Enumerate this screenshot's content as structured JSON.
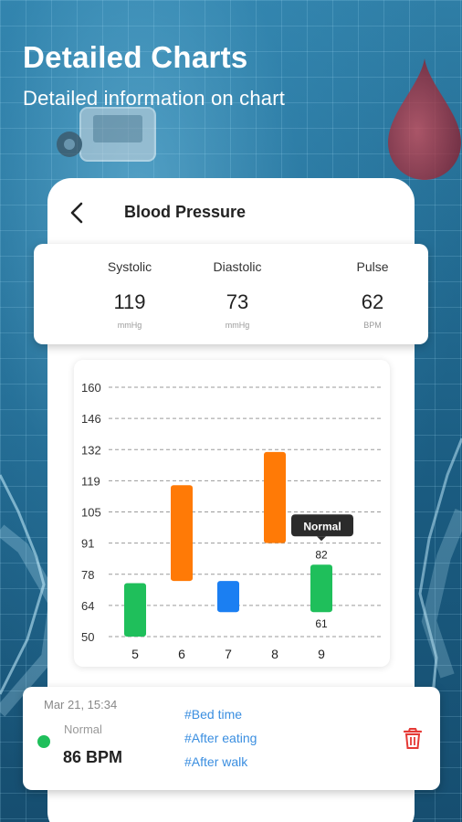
{
  "hero": {
    "title": "Detailed Charts",
    "subtitle": "Detailed information on chart"
  },
  "screen": {
    "title": "Blood Pressure"
  },
  "stats": [
    {
      "label": "Systolic",
      "value": "119",
      "unit": "mmHg"
    },
    {
      "label": "Diastolic",
      "value": "73",
      "unit": "mmHg"
    },
    {
      "label": "Pulse",
      "value": "62",
      "unit": "BPM"
    }
  ],
  "chart_data": {
    "type": "bar",
    "subtype": "floating-range",
    "y_ticks": [
      "160",
      "146",
      "132",
      "119",
      "105",
      "91",
      "78",
      "64",
      "50"
    ],
    "ylim": [
      50,
      160
    ],
    "grid": "dashed-horizontal",
    "categories": [
      "5",
      "6",
      "7",
      "8",
      "9"
    ],
    "ranges": [
      {
        "x": "5",
        "low": 50,
        "high": 74,
        "color": "#1fbf5b"
      },
      {
        "x": "6",
        "low": 75,
        "high": 117,
        "color": "#ff7a06"
      },
      {
        "x": "7",
        "low": 61,
        "high": 75,
        "color": "#1b7ff2"
      },
      {
        "x": "8",
        "low": 91,
        "high": 131,
        "color": "#ff7a06"
      },
      {
        "x": "9",
        "low": 61,
        "high": 82,
        "color": "#1fbf5b"
      }
    ],
    "tooltip": {
      "x": "9",
      "label": "Normal",
      "high_label": "82",
      "low_label": "61"
    }
  },
  "record": {
    "date": "Mar 21, 15:34",
    "status": "Normal",
    "value": "86 BPM",
    "tags": [
      "#Bed time",
      "#After eating",
      "#After walk"
    ],
    "status_color": "#1fbf5b"
  },
  "icons": {
    "back": "back-arrow-icon",
    "delete": "trash-icon",
    "drop": "blood-drop-icon",
    "monitor": "blood-pressure-monitor-icon"
  },
  "colors": {
    "accent_orange": "#ff7a06",
    "accent_green": "#1fbf5b",
    "accent_blue": "#1b7ff2",
    "tag_blue": "#3a8ee0",
    "delete_red": "#e53935"
  }
}
